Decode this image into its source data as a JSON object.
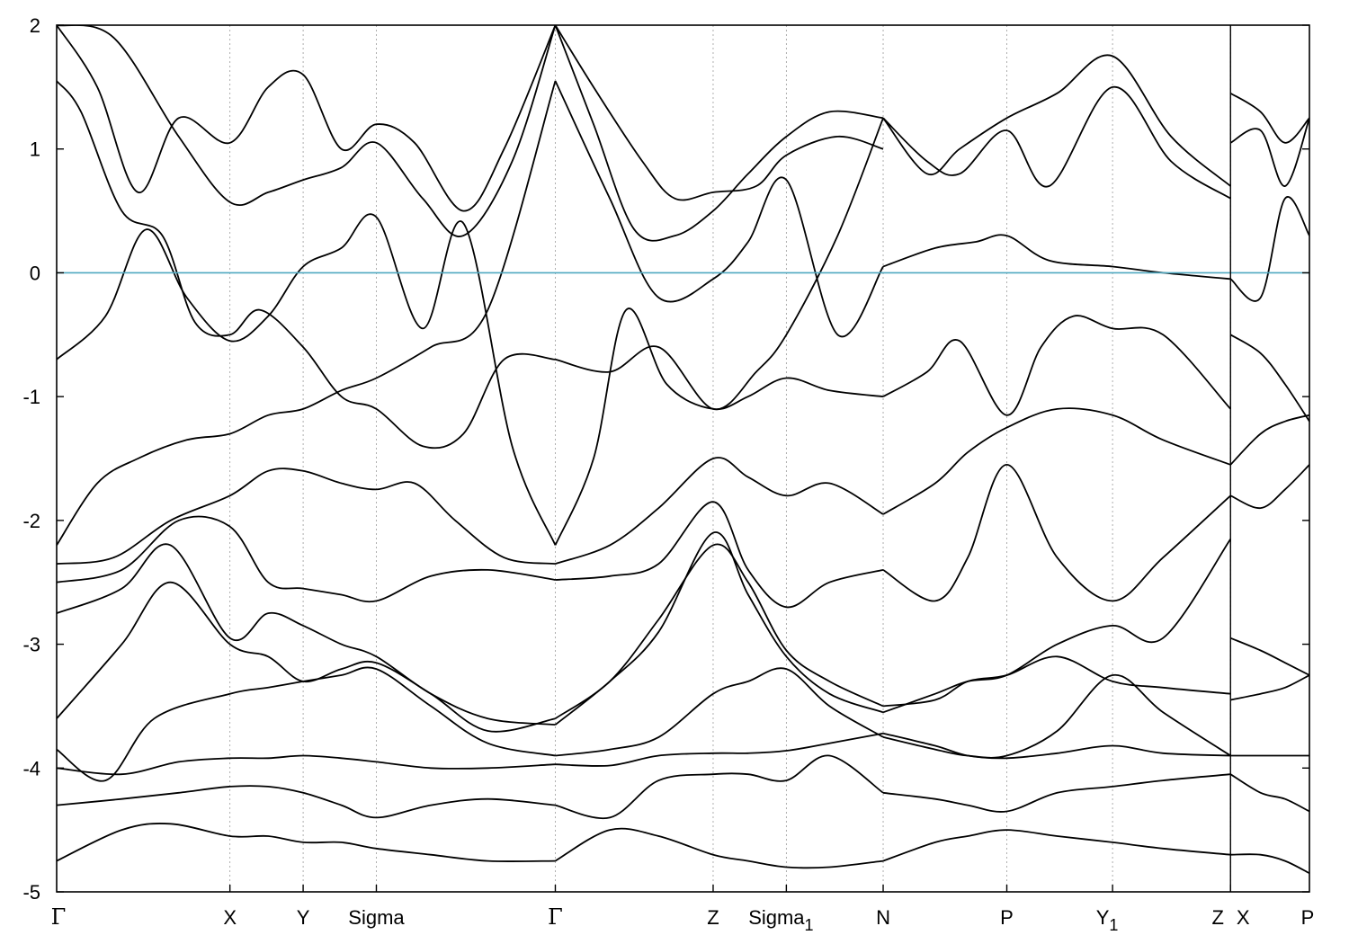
{
  "chart_data": {
    "type": "line",
    "title": "",
    "xlabel": "",
    "ylabel": "",
    "ylim": [
      -5,
      2
    ],
    "yticks": [
      -5,
      -4,
      -3,
      -2,
      -1,
      0,
      1,
      2
    ],
    "ytick_labels": [
      "-5",
      "-4",
      "-3",
      "-2",
      "-1",
      "0",
      "1",
      "2"
    ],
    "fermi_level": 0,
    "fermi_color": "#4fa8c0",
    "band_color": "#000000",
    "grid": "vertical dotted lines at high-symmetry points",
    "xlim": [
      0,
      15.4
    ],
    "kpoints": [
      {
        "label": "Γ",
        "sub": "",
        "x": 0
      },
      {
        "label": "X",
        "sub": "",
        "x": 2.13
      },
      {
        "label": "Y",
        "sub": "",
        "x": 3.03
      },
      {
        "label": "Sigma",
        "sub": "",
        "x": 3.93
      },
      {
        "label": "Γ",
        "sub": "",
        "x": 6.13
      },
      {
        "label": "Z",
        "sub": "",
        "x": 8.07
      },
      {
        "label": "Sigma",
        "sub": "1",
        "x": 8.97
      },
      {
        "label": "N",
        "sub": "",
        "x": 10.16
      },
      {
        "label": "P",
        "sub": "",
        "x": 11.68
      },
      {
        "label": "Y",
        "sub": "1",
        "x": 12.98
      },
      {
        "label": "Z",
        "sub": "",
        "x": 14.43
      },
      {
        "label": "X",
        "sub": "",
        "x": 14.43
      },
      {
        "label": "P",
        "sub": "",
        "x": 15.4
      }
    ],
    "path_break_at": 14.43,
    "series": [
      {
        "x": [
          0,
          0.6,
          1.1,
          1.6,
          2.13,
          2.6,
          3.03,
          3.5,
          3.93,
          4.5,
          5.0,
          5.6,
          6.13
        ],
        "values": [
          -0.7,
          -0.35,
          0.35,
          -0.2,
          -0.55,
          -0.35,
          0.05,
          0.2,
          0.45,
          -0.45,
          0.4,
          -1.4,
          -2.2
        ]
      },
      {
        "x": [
          6.13,
          6.6,
          7.0,
          7.5,
          8.07,
          8.5,
          8.97,
          9.5,
          10.16
        ],
        "values": [
          -2.2,
          -1.5,
          -0.3,
          -0.9,
          -1.1,
          -1.0,
          -0.85,
          -0.95,
          -1.0
        ]
      },
      {
        "x": [
          10.16,
          10.7,
          11.1,
          11.68,
          12.1,
          12.5,
          12.98,
          13.6,
          14.43
        ],
        "values": [
          -1.0,
          -0.8,
          -0.55,
          -1.15,
          -0.6,
          -0.35,
          -0.45,
          -0.5,
          -1.1
        ]
      },
      {
        "x": [
          14.43,
          14.8,
          15.1,
          15.4
        ],
        "values": [
          -0.5,
          -0.65,
          -0.9,
          -1.2
        ]
      },
      {
        "x": [
          0,
          0.5,
          1.0,
          1.6,
          2.13,
          2.6,
          3.03,
          3.5,
          3.93,
          4.6,
          5.3,
          6.13
        ],
        "values": [
          -2.2,
          -1.7,
          -1.5,
          -1.35,
          -1.3,
          -1.15,
          -1.1,
          -0.95,
          -0.85,
          -0.6,
          -0.3,
          1.55
        ]
      },
      {
        "x": [
          6.13,
          6.8,
          7.4,
          8.07,
          8.5,
          8.97,
          9.6,
          10.16
        ],
        "values": [
          1.55,
          0.6,
          -0.2,
          -0.05,
          0.25,
          0.75,
          -0.5,
          0.05
        ]
      },
      {
        "x": [
          10.16,
          10.8,
          11.3,
          11.68,
          12.2,
          12.98,
          13.6,
          14.43
        ],
        "values": [
          0.05,
          0.2,
          0.25,
          0.3,
          0.1,
          0.05,
          0.0,
          -0.05
        ]
      },
      {
        "x": [
          14.43,
          14.8,
          15.1,
          15.4
        ],
        "values": [
          -0.05,
          -0.2,
          0.6,
          0.3
        ]
      },
      {
        "x": [
          0,
          0.7,
          1.4,
          2.13,
          2.6,
          3.03,
          3.5,
          3.93,
          4.4,
          4.9,
          5.5,
          6.13
        ],
        "values": [
          -2.35,
          -2.3,
          -2.0,
          -1.8,
          -1.6,
          -1.6,
          -1.7,
          -1.75,
          -1.7,
          -2.0,
          -2.3,
          -2.35
        ]
      },
      {
        "x": [
          6.13,
          6.8,
          7.4,
          8.07,
          8.5,
          8.97,
          9.5,
          10.16
        ],
        "values": [
          -2.35,
          -2.2,
          -1.9,
          -1.5,
          -1.65,
          -1.8,
          -1.7,
          -1.95
        ]
      },
      {
        "x": [
          10.16,
          10.8,
          11.2,
          11.68,
          12.3,
          12.98,
          13.6,
          14.43
        ],
        "values": [
          -1.95,
          -1.7,
          -1.45,
          -1.25,
          -1.1,
          -1.15,
          -1.35,
          -1.55
        ]
      },
      {
        "x": [
          14.43,
          14.8,
          15.1,
          15.4
        ],
        "values": [
          -1.55,
          -1.3,
          -1.2,
          -1.15
        ]
      },
      {
        "x": [
          0,
          0.8,
          1.5,
          2.13,
          2.6,
          3.03,
          3.5,
          3.93,
          4.6,
          5.3,
          6.13
        ],
        "values": [
          -2.5,
          -2.4,
          -2.0,
          -2.05,
          -2.5,
          -2.55,
          -2.6,
          -2.65,
          -2.45,
          -2.4,
          -2.48
        ]
      },
      {
        "x": [
          6.13,
          6.8,
          7.4,
          8.07,
          8.5,
          8.97,
          9.5,
          10.16
        ],
        "values": [
          -2.48,
          -2.45,
          -2.35,
          -1.85,
          -2.4,
          -2.7,
          -2.5,
          -2.4
        ]
      },
      {
        "x": [
          10.16,
          10.8,
          11.2,
          11.68,
          12.3,
          12.98,
          13.6,
          14.43
        ],
        "values": [
          -2.4,
          -2.65,
          -2.3,
          -1.55,
          -2.3,
          -2.65,
          -2.3,
          -1.8
        ]
      },
      {
        "x": [
          14.43,
          14.8,
          15.1,
          15.4
        ],
        "values": [
          -1.8,
          -1.9,
          -1.75,
          -1.55
        ]
      },
      {
        "x": [
          0,
          0.8,
          1.4,
          2.13,
          2.6,
          3.03,
          3.5,
          3.93,
          4.6,
          5.3,
          6.13
        ],
        "values": [
          -2.75,
          -2.55,
          -2.2,
          -2.95,
          -2.75,
          -2.85,
          -3.0,
          -3.1,
          -3.4,
          -3.6,
          -3.65
        ]
      },
      {
        "x": [
          6.13,
          6.8,
          7.4,
          8.07,
          8.5,
          8.97,
          9.5,
          10.16
        ],
        "values": [
          -3.65,
          -3.3,
          -2.9,
          -2.1,
          -2.6,
          -3.1,
          -3.4,
          -3.55
        ]
      },
      {
        "x": [
          10.16,
          10.8,
          11.2,
          11.68,
          12.3,
          12.98,
          13.6,
          14.43
        ],
        "values": [
          -3.55,
          -3.4,
          -3.3,
          -3.25,
          -3.0,
          -2.85,
          -2.95,
          -2.15
        ]
      },
      {
        "x": [
          14.43,
          14.8,
          15.1,
          15.4
        ],
        "values": [
          -2.95,
          -3.05,
          -3.15,
          -3.25
        ]
      },
      {
        "x": [
          0,
          0.8,
          1.4,
          2.13,
          2.6,
          3.03,
          3.5,
          3.93,
          4.6,
          5.3,
          6.13
        ],
        "values": [
          -3.6,
          -3.0,
          -2.5,
          -3.0,
          -3.1,
          -3.3,
          -3.2,
          -3.15,
          -3.4,
          -3.7,
          -3.6
        ]
      },
      {
        "x": [
          6.13,
          6.8,
          7.4,
          8.07,
          8.5,
          8.97,
          9.5,
          10.16
        ],
        "values": [
          -3.6,
          -3.3,
          -2.8,
          -2.2,
          -2.5,
          -3.05,
          -3.3,
          -3.5
        ]
      },
      {
        "x": [
          10.16,
          10.8,
          11.2,
          11.68,
          12.3,
          12.98,
          13.6,
          14.43
        ],
        "values": [
          -3.5,
          -3.45,
          -3.3,
          -3.25,
          -3.1,
          -3.3,
          -3.35,
          -3.4
        ]
      },
      {
        "x": [
          14.43,
          14.8,
          15.1,
          15.4
        ],
        "values": [
          -3.45,
          -3.4,
          -3.35,
          -3.25
        ]
      },
      {
        "x": [
          0,
          0.6,
          1.2,
          2.13,
          2.6,
          3.03,
          3.5,
          3.93,
          4.6,
          5.3,
          6.13
        ],
        "values": [
          -3.85,
          -4.1,
          -3.6,
          -3.4,
          -3.35,
          -3.3,
          -3.25,
          -3.2,
          -3.5,
          -3.8,
          -3.9
        ]
      },
      {
        "x": [
          6.13,
          6.8,
          7.4,
          8.07,
          8.5,
          8.97,
          9.5,
          10.16
        ],
        "values": [
          -3.9,
          -3.85,
          -3.75,
          -3.4,
          -3.3,
          -3.2,
          -3.5,
          -3.75
        ]
      },
      {
        "x": [
          10.16,
          10.8,
          11.2,
          11.68,
          12.3,
          12.98,
          13.6,
          14.43
        ],
        "values": [
          -3.75,
          -3.85,
          -3.9,
          -3.9,
          -3.7,
          -3.25,
          -3.55,
          -3.9
        ]
      },
      {
        "x": [
          14.43,
          14.8,
          15.1,
          15.4
        ],
        "values": [
          -3.9,
          -3.9,
          -3.9,
          -3.9
        ]
      },
      {
        "x": [
          0,
          0.8,
          1.5,
          2.13,
          2.6,
          3.03,
          3.5,
          3.93,
          4.6,
          5.3,
          6.13
        ],
        "values": [
          -4.0,
          -4.05,
          -3.95,
          -3.92,
          -3.92,
          -3.9,
          -3.92,
          -3.95,
          -4.0,
          -4.0,
          -3.97
        ]
      },
      {
        "x": [
          6.13,
          6.8,
          7.4,
          8.07,
          8.5,
          8.97,
          9.5,
          10.16
        ],
        "values": [
          -3.97,
          -3.98,
          -3.9,
          -3.88,
          -3.88,
          -3.86,
          -3.8,
          -3.72
        ]
      },
      {
        "x": [
          10.16,
          10.8,
          11.2,
          11.68,
          12.3,
          12.98,
          13.6,
          14.43
        ],
        "values": [
          -3.72,
          -3.82,
          -3.9,
          -3.92,
          -3.88,
          -3.82,
          -3.88,
          -3.9
        ]
      },
      {
        "x": [
          0,
          0.8,
          1.5,
          2.13,
          2.6,
          3.03,
          3.5,
          3.93,
          4.6,
          5.3,
          6.13
        ],
        "values": [
          -4.3,
          -4.25,
          -4.2,
          -4.15,
          -4.15,
          -4.2,
          -4.3,
          -4.4,
          -4.3,
          -4.25,
          -4.3
        ]
      },
      {
        "x": [
          6.13,
          6.8,
          7.4,
          8.07,
          8.5,
          8.97,
          9.5,
          10.16
        ],
        "values": [
          -4.3,
          -4.4,
          -4.1,
          -4.05,
          -4.05,
          -4.1,
          -3.9,
          -4.2
        ]
      },
      {
        "x": [
          10.16,
          10.8,
          11.2,
          11.68,
          12.3,
          12.98,
          13.6,
          14.43
        ],
        "values": [
          -4.2,
          -4.25,
          -4.3,
          -4.35,
          -4.2,
          -4.15,
          -4.1,
          -4.05
        ]
      },
      {
        "x": [
          14.43,
          14.8,
          15.1,
          15.4
        ],
        "values": [
          -4.05,
          -4.2,
          -4.25,
          -4.35
        ]
      },
      {
        "x": [
          0,
          0.8,
          1.4,
          2.13,
          2.6,
          3.03,
          3.5,
          3.93,
          4.6,
          5.3,
          6.13
        ],
        "values": [
          -4.75,
          -4.5,
          -4.45,
          -4.55,
          -4.55,
          -4.6,
          -4.6,
          -4.65,
          -4.7,
          -4.75,
          -4.75
        ]
      },
      {
        "x": [
          6.13,
          6.8,
          7.4,
          8.07,
          8.5,
          8.97,
          9.5,
          10.16
        ],
        "values": [
          -4.75,
          -4.5,
          -4.55,
          -4.7,
          -4.75,
          -4.8,
          -4.8,
          -4.75
        ]
      },
      {
        "x": [
          10.16,
          10.8,
          11.2,
          11.68,
          12.3,
          12.98,
          13.6,
          14.43
        ],
        "values": [
          -4.75,
          -4.6,
          -4.55,
          -4.5,
          -4.55,
          -4.6,
          -4.65,
          -4.7
        ]
      },
      {
        "x": [
          14.43,
          14.8,
          15.1,
          15.4
        ],
        "values": [
          -4.7,
          -4.7,
          -4.75,
          -4.85
        ]
      },
      {
        "x": [
          0,
          0.3,
          0.8,
          1.3,
          1.7,
          2.13,
          2.5,
          3.03,
          3.5,
          3.93,
          4.5,
          5.0,
          5.5,
          6.13
        ],
        "values": [
          1.55,
          1.3,
          0.5,
          0.3,
          -0.4,
          -0.5,
          -0.3,
          -0.6,
          -1.0,
          -1.1,
          -1.4,
          -1.3,
          -0.7,
          -0.7
        ]
      },
      {
        "x": [
          6.13,
          6.8,
          7.4,
          8.07,
          8.6,
          8.97,
          9.6,
          10.16
        ],
        "values": [
          -0.7,
          -0.8,
          -0.6,
          -1.1,
          -0.8,
          -0.5,
          0.3,
          1.25
        ]
      },
      {
        "x": [
          10.16,
          10.7,
          11.1,
          11.68,
          12.2,
          12.98,
          13.7,
          14.43
        ],
        "values": [
          1.25,
          0.9,
          0.8,
          1.15,
          0.7,
          1.5,
          0.9,
          0.6
        ]
      },
      {
        "x": [
          0,
          0.5,
          1.0,
          1.5,
          2.13,
          2.6,
          3.03,
          3.5,
          3.93,
          4.4,
          5.0,
          5.5,
          6.13
        ],
        "values": [
          2.0,
          1.5,
          0.65,
          1.25,
          1.05,
          1.5,
          1.6,
          1.0,
          1.2,
          1.05,
          0.5,
          1.0,
          2.0
        ]
      },
      {
        "x": [
          6.13,
          6.6,
          7.1,
          7.6,
          8.07,
          8.5,
          8.97,
          9.5,
          10.16
        ],
        "values": [
          2.0,
          1.2,
          0.35,
          0.3,
          0.5,
          0.8,
          1.1,
          1.3,
          1.25
        ]
      },
      {
        "x": [
          10.16,
          10.7,
          11.1,
          11.68,
          12.3,
          12.98,
          13.7,
          14.43
        ],
        "values": [
          1.25,
          0.8,
          1.0,
          1.25,
          1.45,
          1.75,
          1.1,
          0.7
        ]
      },
      {
        "x": [
          14.43,
          14.8,
          15.1,
          15.4
        ],
        "values": [
          1.05,
          1.15,
          0.7,
          1.25
        ]
      },
      {
        "x": [
          0,
          0.7,
          1.5,
          2.13,
          2.6,
          3.03,
          3.5,
          3.93,
          4.5,
          5.0,
          5.6,
          6.13
        ],
        "values": [
          2.0,
          1.9,
          1.1,
          0.57,
          0.65,
          0.75,
          0.85,
          1.05,
          0.6,
          0.3,
          0.9,
          2.0
        ]
      },
      {
        "x": [
          6.13,
          6.6,
          7.2,
          7.6,
          8.07,
          8.6,
          8.97,
          9.6,
          10.16
        ],
        "values": [
          2.0,
          1.5,
          0.9,
          0.6,
          0.65,
          0.7,
          0.95,
          1.1,
          1.0
        ]
      },
      {
        "x": [
          14.43,
          14.8,
          15.1,
          15.4
        ],
        "values": [
          1.45,
          1.3,
          1.05,
          1.25
        ]
      }
    ]
  }
}
